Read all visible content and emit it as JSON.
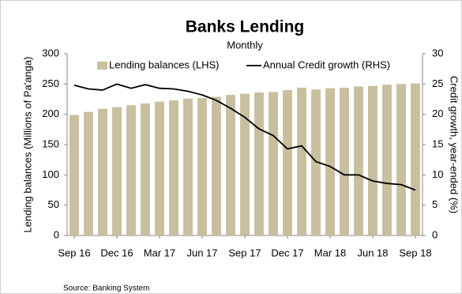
{
  "chart_data": {
    "type": "bar",
    "title": "Banks Lending",
    "subtitle": "Monthly",
    "y_label": "Lending balances (Millions of Pa'anga)",
    "y2_label": "Credit growth, year-ended (%)",
    "source": "Source: Banking System",
    "categories": [
      "Sep 16",
      null,
      null,
      "Dec 16",
      null,
      null,
      "Mar 17",
      null,
      null,
      "Jun 17",
      null,
      null,
      "Sep 17",
      null,
      null,
      "Dec 17",
      null,
      null,
      "Mar 18",
      null,
      null,
      "Jun 18",
      null,
      null,
      "Sep 18"
    ],
    "series": [
      {
        "name": "Lending balances (LHS)",
        "type": "bar",
        "color": "#c8bf9d",
        "values": [
          199,
          204,
          209,
          212,
          215,
          218,
          221,
          223,
          226,
          227,
          229,
          232,
          234,
          236,
          237,
          240,
          244,
          241,
          243,
          244,
          246,
          247,
          249,
          250,
          251
        ]
      },
      {
        "name": "Annual Credit growth (RHS)",
        "type": "line",
        "axis": "y2",
        "color": "#000000",
        "values": [
          24.8,
          24.2,
          24.0,
          25.0,
          24.3,
          24.9,
          24.3,
          24.2,
          23.8,
          23.2,
          22.3,
          21.0,
          19.5,
          17.6,
          16.5,
          14.3,
          14.8,
          12.2,
          11.4,
          10.0,
          10.0,
          9.0,
          8.6,
          8.4,
          7.5
        ]
      }
    ],
    "ylim": [
      0,
      300
    ],
    "yticks": [
      0,
      50,
      100,
      150,
      200,
      250,
      300
    ],
    "y2lim": [
      0,
      30
    ],
    "y2ticks": [
      0,
      5,
      10,
      15,
      20,
      25,
      30
    ],
    "grid": false
  }
}
